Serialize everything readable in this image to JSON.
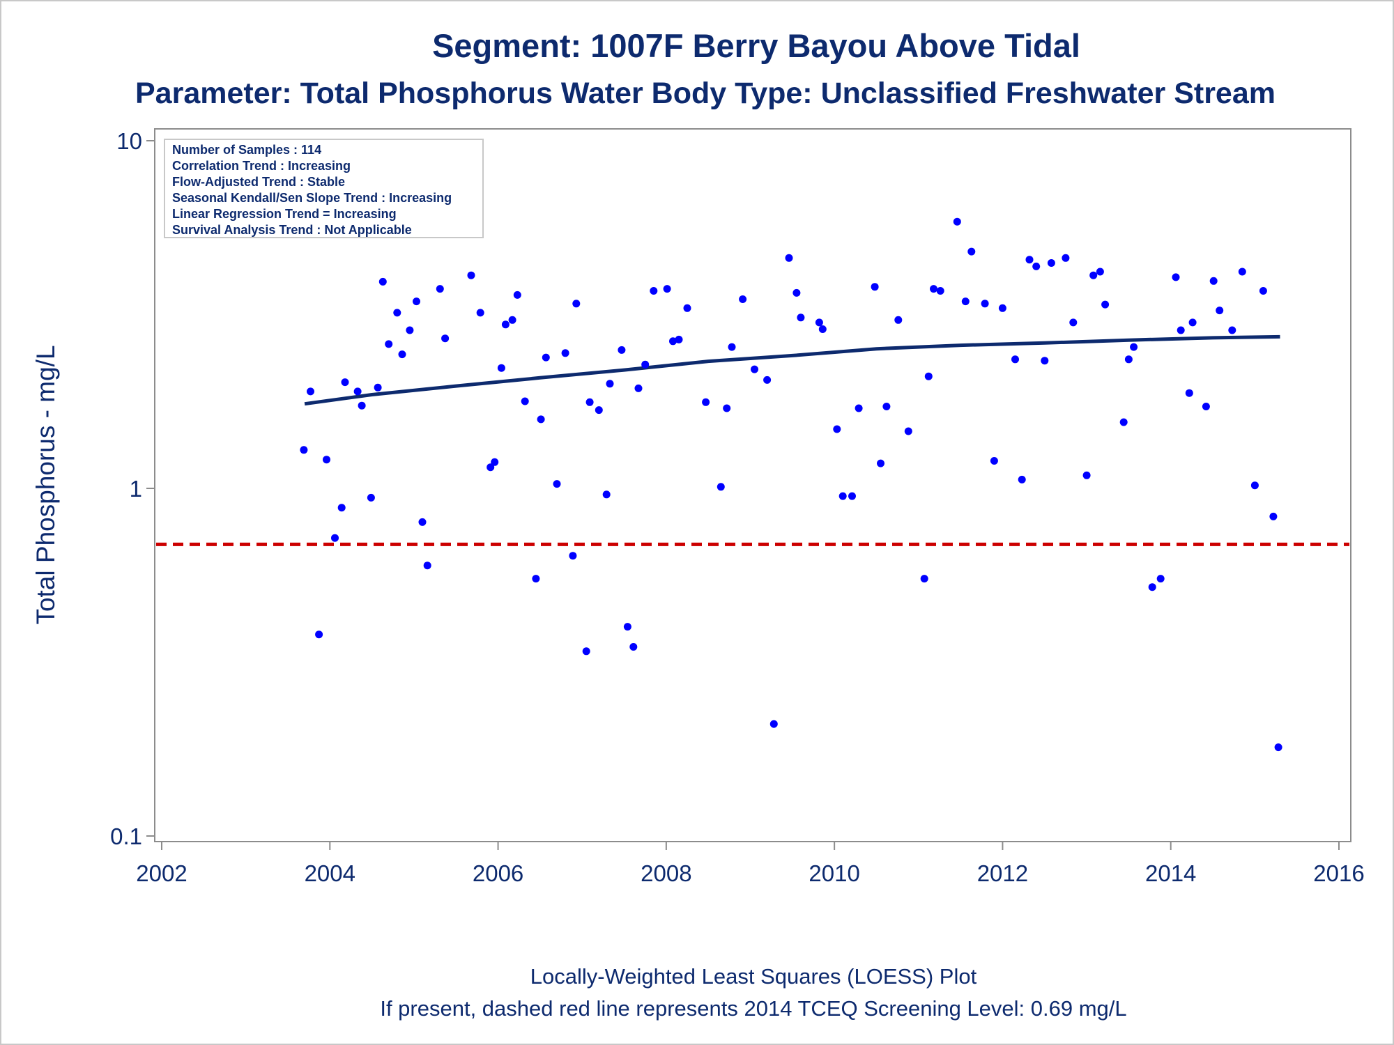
{
  "chart_data": {
    "type": "scatter",
    "title": "Segment: 1007F  Berry Bayou Above Tidal",
    "subtitle": "Parameter: Total Phosphorus   Water Body Type: Unclassified Freshwater Stream",
    "xlabel": "",
    "ylabel": "Total Phosphorus - mg/L",
    "xlim": [
      2002,
      2016
    ],
    "ylim": [
      0.1,
      10
    ],
    "y_scale": "log",
    "x_ticks": [
      2002,
      2004,
      2006,
      2008,
      2010,
      2012,
      2014,
      2016
    ],
    "y_ticks": [
      0.1,
      1,
      10
    ],
    "y_tick_labels": [
      "0.1",
      "1",
      "10"
    ],
    "grid": false,
    "colors": {
      "points": "#0000ff",
      "loess": "#0d2a6e",
      "screening": "#cc0000",
      "text": "#0d2a6e"
    },
    "stats_box": {
      "placement": "top-left",
      "lines": [
        "Number of Samples : 114",
        "Correlation Trend : Increasing",
        "Flow-Adjusted Trend : Stable",
        "Seasonal Kendall/Sen Slope Trend : Increasing",
        "Linear Regression Trend = Increasing",
        "Survival Analysis Trend : Not Applicable"
      ]
    },
    "screening_level": 0.69,
    "loess": {
      "x": [
        2003.7,
        2004.5,
        2005.5,
        2006.5,
        2007.5,
        2008.5,
        2009.5,
        2010.5,
        2011.5,
        2012.5,
        2013.5,
        2014.5,
        2015.3
      ],
      "y": [
        1.75,
        1.86,
        1.97,
        2.08,
        2.19,
        2.32,
        2.41,
        2.52,
        2.58,
        2.62,
        2.67,
        2.71,
        2.73
      ]
    },
    "series": [
      {
        "x": [
          2003.69,
          2003.77,
          2003.87,
          2003.96,
          2004.06,
          2004.14,
          2004.18,
          2004.33,
          2004.38,
          2004.49,
          2004.57,
          2004.63,
          2004.7,
          2004.8,
          2004.86,
          2004.95,
          2005.03,
          2005.1,
          2005.16,
          2005.31,
          2005.37,
          2005.68,
          2005.79,
          2005.91,
          2005.96,
          2006.04,
          2006.09,
          2006.17,
          2006.23,
          2006.32,
          2006.45,
          2006.51,
          2006.57,
          2006.7,
          2006.8,
          2006.89,
          2006.93,
          2007.05,
          2007.09,
          2007.2,
          2007.29,
          2007.33,
          2007.47,
          2007.54,
          2007.61,
          2007.67,
          2007.75,
          2007.85,
          2008.01,
          2008.08,
          2008.15,
          2008.25,
          2008.47,
          2008.65,
          2008.72,
          2008.78,
          2008.91,
          2009.05,
          2009.2,
          2009.28,
          2009.46,
          2009.55,
          2009.6,
          2009.82,
          2009.86,
          2010.03,
          2010.1,
          2010.21,
          2010.29,
          2010.48,
          2010.55,
          2010.62,
          2010.76,
          2010.88,
          2011.07,
          2011.12,
          2011.18,
          2011.26,
          2011.46,
          2011.56,
          2011.63,
          2011.79,
          2011.9,
          2012.0,
          2012.15,
          2012.23,
          2012.32,
          2012.4,
          2012.5,
          2012.58,
          2012.75,
          2012.84,
          2013.0,
          2013.08,
          2013.16,
          2013.22,
          2013.44,
          2013.5,
          2013.56,
          2013.78,
          2013.88,
          2014.06,
          2014.12,
          2014.22,
          2014.26,
          2014.42,
          2014.51,
          2014.58,
          2014.73,
          2014.85,
          2015.0,
          2015.1,
          2015.22,
          2015.28
        ],
        "y": [
          1.29,
          1.9,
          0.38,
          1.21,
          0.72,
          0.88,
          2.02,
          1.9,
          1.73,
          0.94,
          1.95,
          3.93,
          2.6,
          3.2,
          2.43,
          2.85,
          3.45,
          0.8,
          0.6,
          3.75,
          2.7,
          4.1,
          3.2,
          1.15,
          1.19,
          2.22,
          2.96,
          3.05,
          3.6,
          1.78,
          0.55,
          1.58,
          2.38,
          1.03,
          2.45,
          0.64,
          3.4,
          0.34,
          1.77,
          1.68,
          0.96,
          2.0,
          2.5,
          0.4,
          0.35,
          1.94,
          2.27,
          3.7,
          3.75,
          2.65,
          2.68,
          3.3,
          1.77,
          1.01,
          1.7,
          2.55,
          3.5,
          2.2,
          2.05,
          0.21,
          4.6,
          3.65,
          3.1,
          3.0,
          2.87,
          1.48,
          0.95,
          0.95,
          1.7,
          3.8,
          1.18,
          1.72,
          3.05,
          1.46,
          0.55,
          2.1,
          3.75,
          3.7,
          5.85,
          3.45,
          4.8,
          3.4,
          1.2,
          3.3,
          2.35,
          1.06,
          4.55,
          4.35,
          2.33,
          4.45,
          4.6,
          3.0,
          1.09,
          4.1,
          4.2,
          3.38,
          1.55,
          2.35,
          2.55,
          0.52,
          0.55,
          4.05,
          2.85,
          1.88,
          3.0,
          1.72,
          3.95,
          3.25,
          2.85,
          4.2,
          1.02,
          3.7,
          0.83,
          0.18
        ]
      }
    ],
    "footnotes": [
      "Locally-Weighted Least Squares (LOESS) Plot",
      "If present, dashed red line represents 2014 TCEQ Screening Level: 0.69 mg/L"
    ]
  }
}
